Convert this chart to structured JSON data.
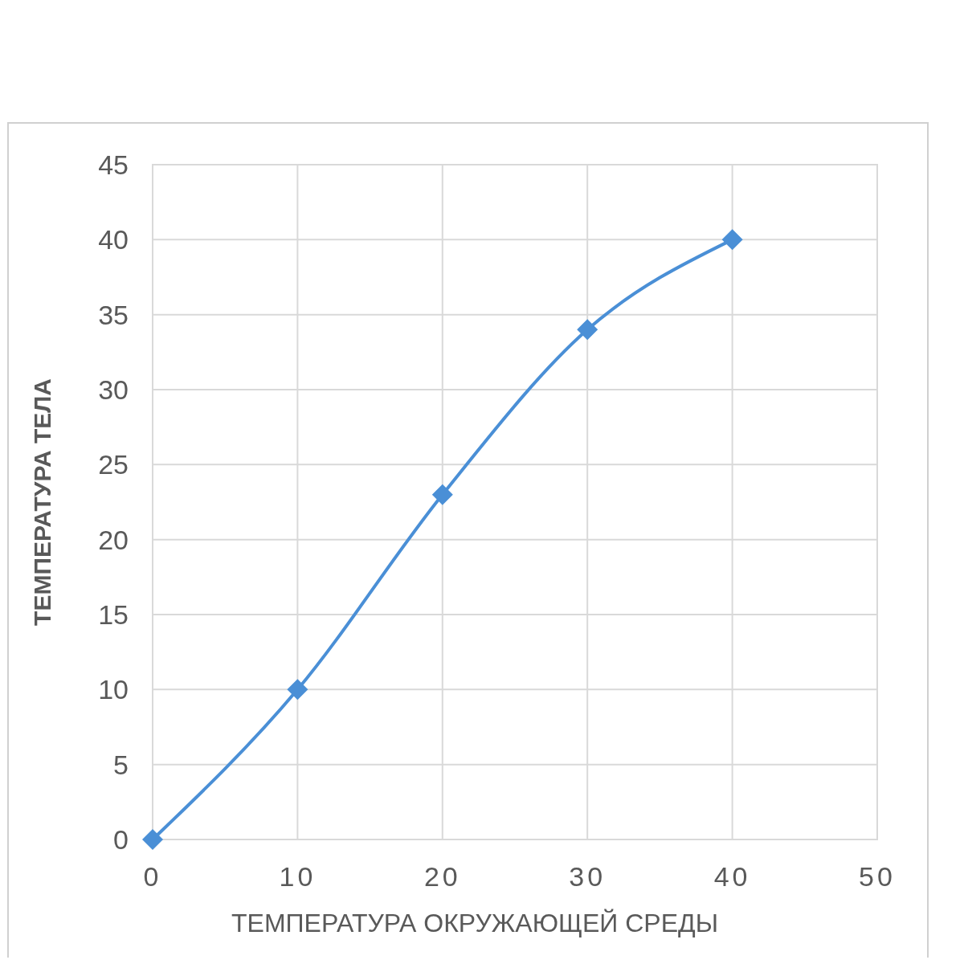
{
  "chart_data": {
    "type": "line",
    "xlabel": "ТЕМПЕРАТУРА ОКРУЖАЮЩЕЙ СРЕДЫ",
    "ylabel": "ТЕМПЕРАТУРА ТЕЛА",
    "x": [
      0,
      10,
      20,
      30,
      40
    ],
    "series": [
      {
        "color": "#4a8fd6",
        "values": [
          0,
          10,
          23,
          34,
          40
        ]
      }
    ],
    "xlim": [
      0,
      50
    ],
    "xticks": [
      0,
      10,
      20,
      30,
      40,
      50
    ],
    "ylim": [
      0,
      45
    ],
    "yticks": [
      0,
      5,
      10,
      15,
      20,
      25,
      30,
      35,
      40,
      45
    ],
    "grid": true,
    "marker": "diamond",
    "line_style": "solid"
  }
}
